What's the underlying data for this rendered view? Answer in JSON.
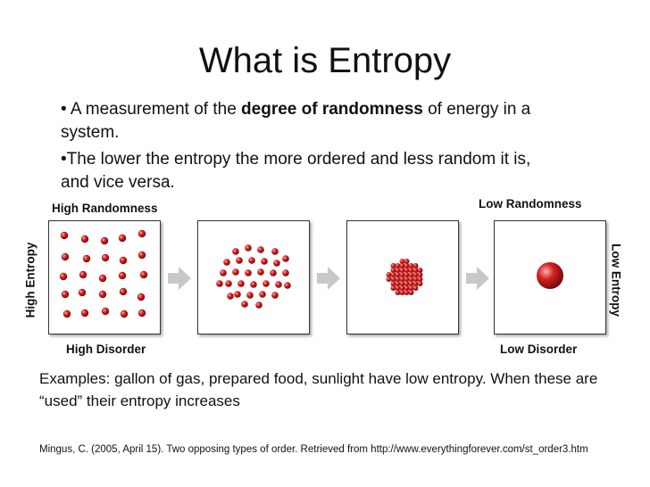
{
  "slide": {
    "title": "What is Entropy",
    "bullet1": {
      "marker": "•",
      "before": " A measurement of the ",
      "bold": "degree of randomness",
      "after": " of energy in a system."
    },
    "bullet2": {
      "marker": "•",
      "text": "The lower the entropy the more ordered and less random it is,  and vice versa."
    },
    "diagram": {
      "high_randomness": "High Randomness",
      "low_randomness": "Low Randomness",
      "high_entropy": "High Entropy",
      "low_entropy": "Low Entropy",
      "high_disorder": "High Disorder",
      "low_disorder": "Low Disorder",
      "particle_color": "#d42020",
      "arrow_color": "#c8c8c8"
    },
    "examples": "Examples:  gallon of gas, prepared food, sunlight have low entropy.  When these are “used” their entropy increases",
    "citation": "Mingus, C. (2005, April 15). Two opposing types of order. Retrieved from http://www.everythingforever.com/st_order3.htm"
  }
}
